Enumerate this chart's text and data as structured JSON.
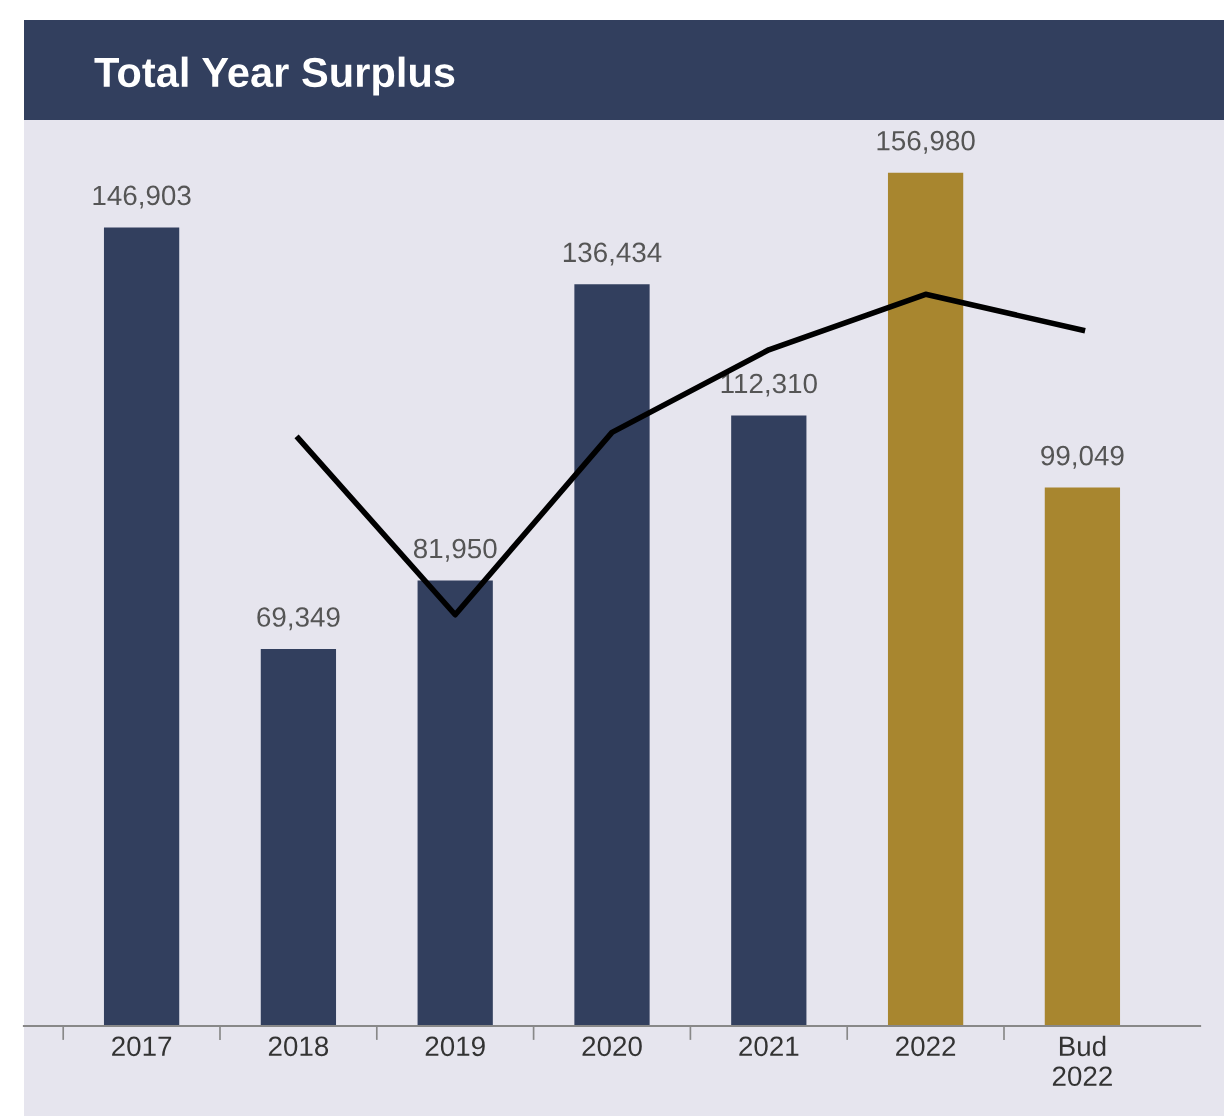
{
  "chart_data": {
    "type": "bar",
    "title": "Total Year Surplus",
    "categories": [
      "2017",
      "2018",
      "2019",
      "2020",
      "2021",
      "2022",
      "Bud\n2022"
    ],
    "series": [
      {
        "colors": [
          "#323f5e",
          "#323f5e",
          "#323f5e",
          "#323f5e",
          "#323f5e",
          "#a8862f",
          "#a8862f"
        ],
        "values": [
          146903,
          69349,
          81950,
          136434,
          112310,
          156980,
          99049
        ],
        "value_labels": [
          "146,903",
          "69,349",
          "81,950",
          "136,434",
          "112,310",
          "156,980",
          "99,049"
        ]
      },
      {
        "type": "line",
        "color": "#000000",
        "values": [
          null,
          108100,
          75650,
          109200,
          124400,
          134600,
          128000
        ]
      }
    ],
    "grid": false,
    "legend": false
  }
}
